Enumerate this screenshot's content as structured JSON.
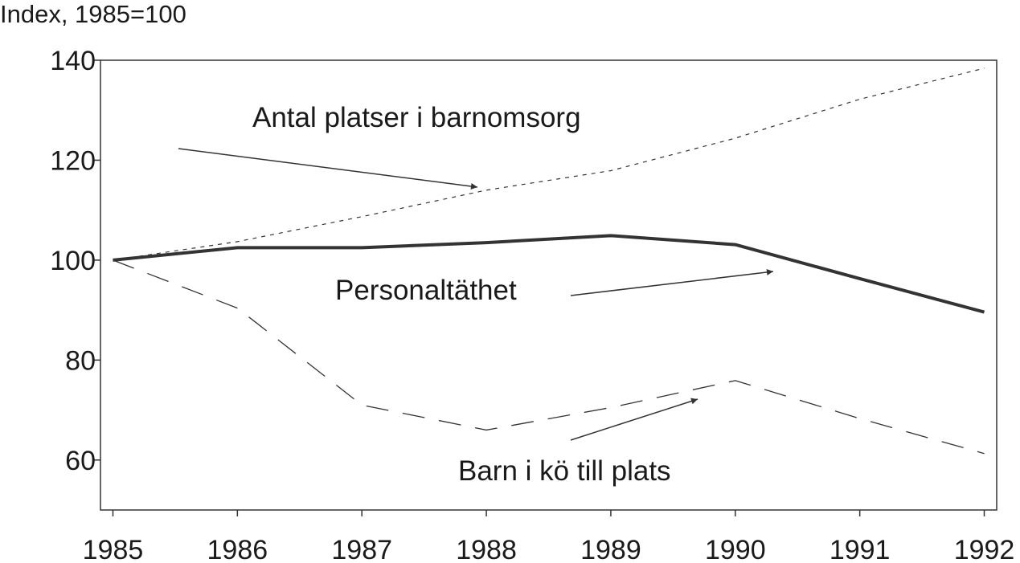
{
  "chart_data": {
    "type": "line",
    "y_label": "Index, 1985=100",
    "xlim": [
      1984.9,
      1992.1
    ],
    "xticks": [
      1985,
      1986,
      1987,
      1988,
      1989,
      1990,
      1991,
      1992
    ],
    "ylim": [
      50,
      140
    ],
    "yticks": [
      60,
      80,
      100,
      120,
      140
    ],
    "series": [
      {
        "name": "Antal platser i barnomsorg",
        "color": "#333333",
        "style": "short-dash",
        "x": [
          1985,
          1986,
          1987,
          1988,
          1989,
          1990,
          1991,
          1992
        ],
        "values": [
          100,
          103.7,
          108.7,
          114,
          117.9,
          124.4,
          132.2,
          138.4
        ]
      },
      {
        "name": "Personaltäthet",
        "color": "#333333",
        "style": "solid",
        "x": [
          1985,
          1986,
          1987,
          1988,
          1989,
          1990,
          1991,
          1992
        ],
        "values": [
          100,
          102.5,
          102.5,
          103.5,
          104.9,
          103.1,
          96.3,
          89.6
        ]
      },
      {
        "name": "Barn i kö till plats",
        "color": "#333333",
        "style": "long-dash",
        "x": [
          1985,
          1986,
          1987,
          1988,
          1989,
          1990,
          1991,
          1992
        ],
        "values": [
          100,
          90.4,
          71,
          66,
          70.5,
          75.9,
          68.3,
          61.3
        ]
      }
    ]
  }
}
